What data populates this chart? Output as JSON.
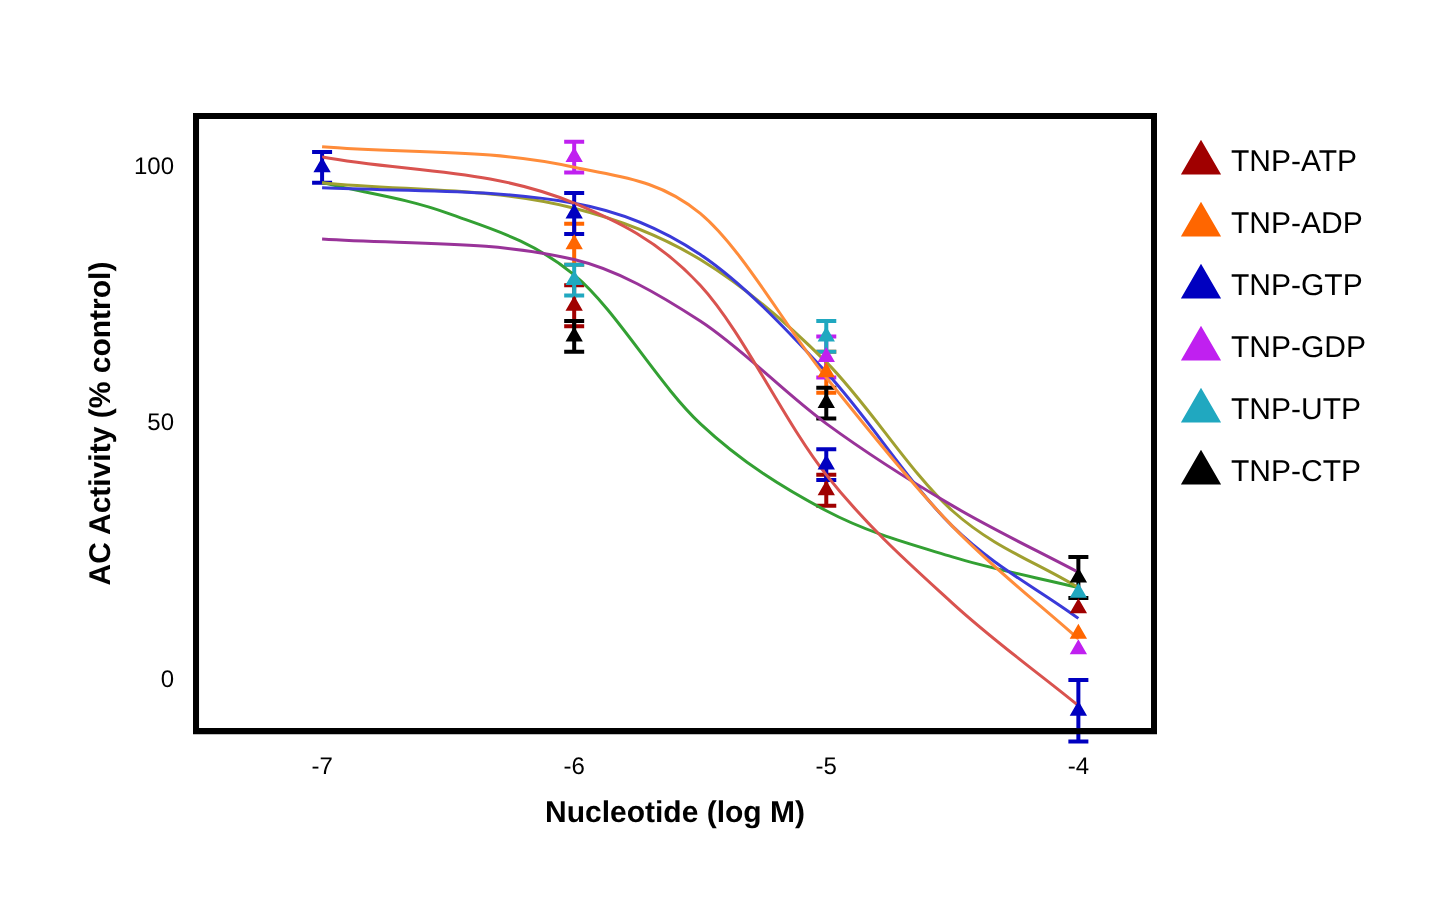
{
  "chart_data": {
    "type": "scatter",
    "xlabel": "Nucleotide (log M)",
    "ylabel": "AC Activity (% control)",
    "x": [
      -7,
      -6,
      -5,
      -4
    ],
    "series": [
      {
        "name": "TNP-ATP",
        "color": "#a00000",
        "values": [
          null,
          73,
          37,
          14
        ],
        "errors": [
          null,
          4,
          3,
          null
        ]
      },
      {
        "name": "TNP-ADP",
        "color": "#ff6600",
        "values": [
          null,
          85,
          60,
          9
        ],
        "errors": [
          null,
          4,
          4,
          null
        ]
      },
      {
        "name": "TNP-GTP",
        "color": "#0000c0",
        "values": [
          100,
          91,
          42,
          -6
        ],
        "errors": [
          3,
          4,
          3,
          6
        ]
      },
      {
        "name": "TNP-GDP",
        "color": "#c020f0",
        "values": [
          null,
          102,
          63,
          6
        ],
        "errors": [
          null,
          3,
          4,
          null
        ]
      },
      {
        "name": "TNP-UTP",
        "color": "#20a8c0",
        "values": [
          null,
          78,
          67,
          17
        ],
        "errors": [
          null,
          3,
          3,
          null
        ]
      },
      {
        "name": "TNP-CTP",
        "color": "#000000",
        "values": [
          null,
          67,
          54,
          20
        ],
        "errors": [
          null,
          3,
          3,
          4
        ]
      },
      {
        "type": "line",
        "marker": "none",
        "color": "#d9534f",
        "x": [
          -7,
          -6,
          -5.5,
          -5,
          -4.5,
          -4
        ],
        "values": [
          102,
          93,
          77,
          40,
          15,
          -5
        ]
      },
      {
        "type": "line",
        "marker": "none",
        "color": "#ff8c3a",
        "x": [
          -7,
          -6,
          -5.5,
          -5,
          -4.5,
          -4
        ],
        "values": [
          104,
          100,
          91,
          59,
          30,
          8
        ]
      },
      {
        "type": "line",
        "marker": "none",
        "color": "#3a3ad9",
        "x": [
          -7,
          -6,
          -5.5,
          -5,
          -4.5,
          -4
        ],
        "values": [
          96,
          93,
          83,
          60,
          30,
          12
        ]
      },
      {
        "type": "line",
        "marker": "none",
        "color": "#993399",
        "x": [
          -7,
          -6,
          -5.5,
          -5,
          -4.5,
          -4
        ],
        "values": [
          86,
          82,
          70,
          50,
          34,
          21
        ]
      },
      {
        "type": "line",
        "marker": "none",
        "color": "#a0a030",
        "x": [
          -7,
          -6,
          -5.5,
          -5,
          -4.5,
          -4
        ],
        "values": [
          97,
          92,
          82,
          62,
          33,
          18
        ]
      },
      {
        "type": "line",
        "marker": "none",
        "color": "#33a033",
        "x": [
          -7,
          -6.5,
          -6,
          -5.5,
          -5,
          -4.5,
          -4
        ],
        "values": [
          97,
          91,
          79,
          50,
          33,
          24,
          18
        ]
      }
    ],
    "xlim": [
      -7.5,
      -3.7
    ],
    "xticks": [
      -7,
      -6,
      -5,
      -4
    ],
    "ylim": [
      -10,
      110
    ],
    "yticks": [
      0,
      50,
      100
    ],
    "grid": false,
    "legend": "right",
    "marker": "triangle"
  }
}
